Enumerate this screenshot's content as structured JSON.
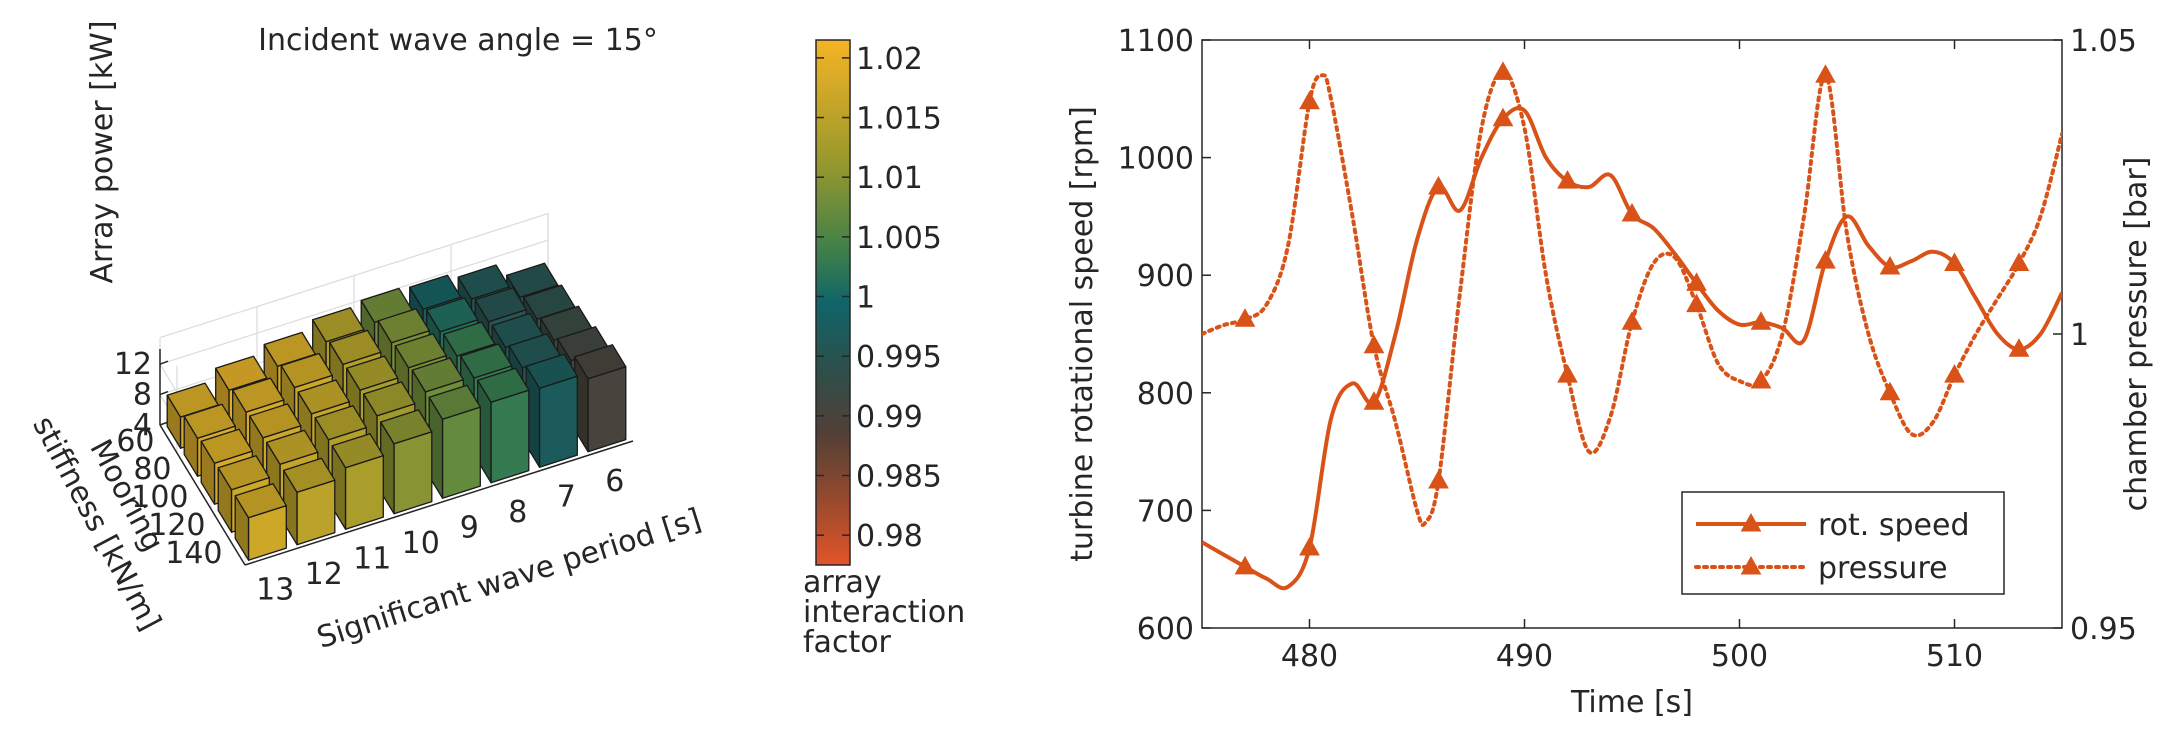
{
  "chart_data": [
    {
      "type": "bar3d",
      "title": "Incident wave angle = 15°",
      "zlabel": "Array power [kW]",
      "zticks": [
        "4",
        "8",
        "12"
      ],
      "xlabel": "Significant wave period  [s]",
      "ylabel_line1": "Mooring",
      "ylabel_line2": "stiffness [kN/m]",
      "periods": [
        "13",
        "12",
        "11",
        "10",
        "9",
        "8",
        "7",
        "6"
      ],
      "stiffness": [
        "60",
        "80",
        "100",
        "120",
        "140"
      ],
      "power": [
        [
          9.6,
          10.9,
          12.1,
          13.2,
          14.4,
          14.6,
          14.4,
          13.6
        ],
        [
          9.6,
          10.9,
          12.1,
          13.2,
          14.3,
          14.1,
          13.4,
          12.3
        ],
        [
          9.4,
          10.7,
          11.8,
          12.9,
          13.8,
          13.3,
          12.4,
          11.3
        ],
        [
          9.0,
          10.4,
          11.6,
          12.6,
          13.4,
          12.8,
          12.1,
          10.4
        ],
        [
          8.1,
          9.6,
          10.7,
          11.9,
          12.4,
          12.1,
          11.4,
          9.6
        ]
      ],
      "interaction": [
        [
          1.017,
          1.015,
          1.013,
          1.01,
          1.007,
          1.003,
          0.997,
          0.99
        ],
        [
          1.017,
          1.016,
          1.014,
          1.012,
          1.008,
          1.003,
          0.996,
          0.991
        ],
        [
          1.018,
          1.017,
          1.016,
          1.013,
          1.009,
          1.003,
          0.996,
          0.992
        ],
        [
          1.018,
          1.018,
          1.017,
          1.014,
          1.009,
          1.001,
          0.995,
          0.994
        ],
        [
          1.018,
          1.019,
          1.018,
          1.014,
          1.008,
          0.998,
          0.996,
          0.995
        ]
      ],
      "colorbar": {
        "ticks": [
          "1.02",
          "1.015",
          "1.01",
          "1.005",
          "1",
          "0.995",
          "0.99",
          "0.985",
          "0.98"
        ],
        "range": [
          0.9775,
          1.0215
        ],
        "label_lines": [
          "array",
          "interaction",
          "factor"
        ]
      }
    },
    {
      "type": "line",
      "xlabel": "Time [s]",
      "ylabel": "turbine rotational speed [rpm]",
      "y2label": "chamber pressure [bar]",
      "xlim": [
        475,
        515
      ],
      "ylim": [
        600,
        1100
      ],
      "y2lim": [
        0.95,
        1.05
      ],
      "xticks": [
        "480",
        "490",
        "500",
        "510"
      ],
      "yticks": [
        "600",
        "700",
        "800",
        "900",
        "1000",
        "1100"
      ],
      "y2ticks": [
        "0.95",
        "1",
        "1.05"
      ],
      "color": "#d95319",
      "series": [
        {
          "name": "rot. speed",
          "style": "solid",
          "x": [
            475,
            477,
            478,
            479,
            480,
            481,
            482,
            483,
            484,
            485,
            486,
            487,
            488,
            489,
            490,
            491,
            492,
            493,
            494,
            495,
            496,
            497,
            498,
            499,
            500,
            501,
            502,
            503,
            504,
            505,
            506,
            507,
            508,
            509,
            510,
            511,
            512,
            513,
            514,
            515
          ],
          "y": [
            673,
            652,
            642,
            635,
            668,
            778,
            808,
            792,
            850,
            930,
            975,
            955,
            1000,
            1033,
            1040,
            1000,
            980,
            975,
            985,
            952,
            940,
            918,
            893,
            870,
            858,
            860,
            855,
            845,
            912,
            950,
            925,
            907,
            912,
            920,
            910,
            880,
            850,
            837,
            850,
            885
          ],
          "marker_x": [
            477,
            480,
            483,
            486,
            489,
            492,
            495,
            498,
            501,
            504,
            507,
            510,
            513
          ]
        },
        {
          "name": "pressure",
          "style": "dotted",
          "x": [
            475,
            476,
            477,
            478,
            479,
            480,
            480.6,
            481,
            482,
            483,
            484,
            485,
            485.4,
            486,
            487,
            488,
            489,
            490,
            491,
            492,
            493,
            494,
            495,
            496,
            497,
            498,
            499,
            500,
            501,
            502,
            503,
            504,
            505,
            506,
            507,
            508,
            509,
            510,
            511,
            512,
            513,
            514,
            515
          ],
          "y": [
            1.0,
            1.0015,
            1.0025,
            1.005,
            1.015,
            1.0395,
            1.044,
            1.04,
            1.02,
            0.998,
            0.985,
            0.97,
            0.968,
            0.975,
            1.007,
            1.035,
            1.0445,
            1.035,
            1.01,
            0.993,
            0.98,
            0.986,
            1.002,
            1.012,
            1.013,
            1.005,
            0.995,
            0.992,
            0.992,
            1.0,
            1.02,
            1.044,
            1.017,
            1.0,
            0.99,
            0.983,
            0.985,
            0.993,
            1.0,
            1.006,
            1.012,
            1.02,
            1.034
          ],
          "marker_x": [
            477,
            480,
            483,
            486,
            489,
            492,
            495,
            498,
            501,
            504,
            507,
            510,
            513
          ]
        }
      ],
      "legend_placement": "bottom-right"
    }
  ]
}
